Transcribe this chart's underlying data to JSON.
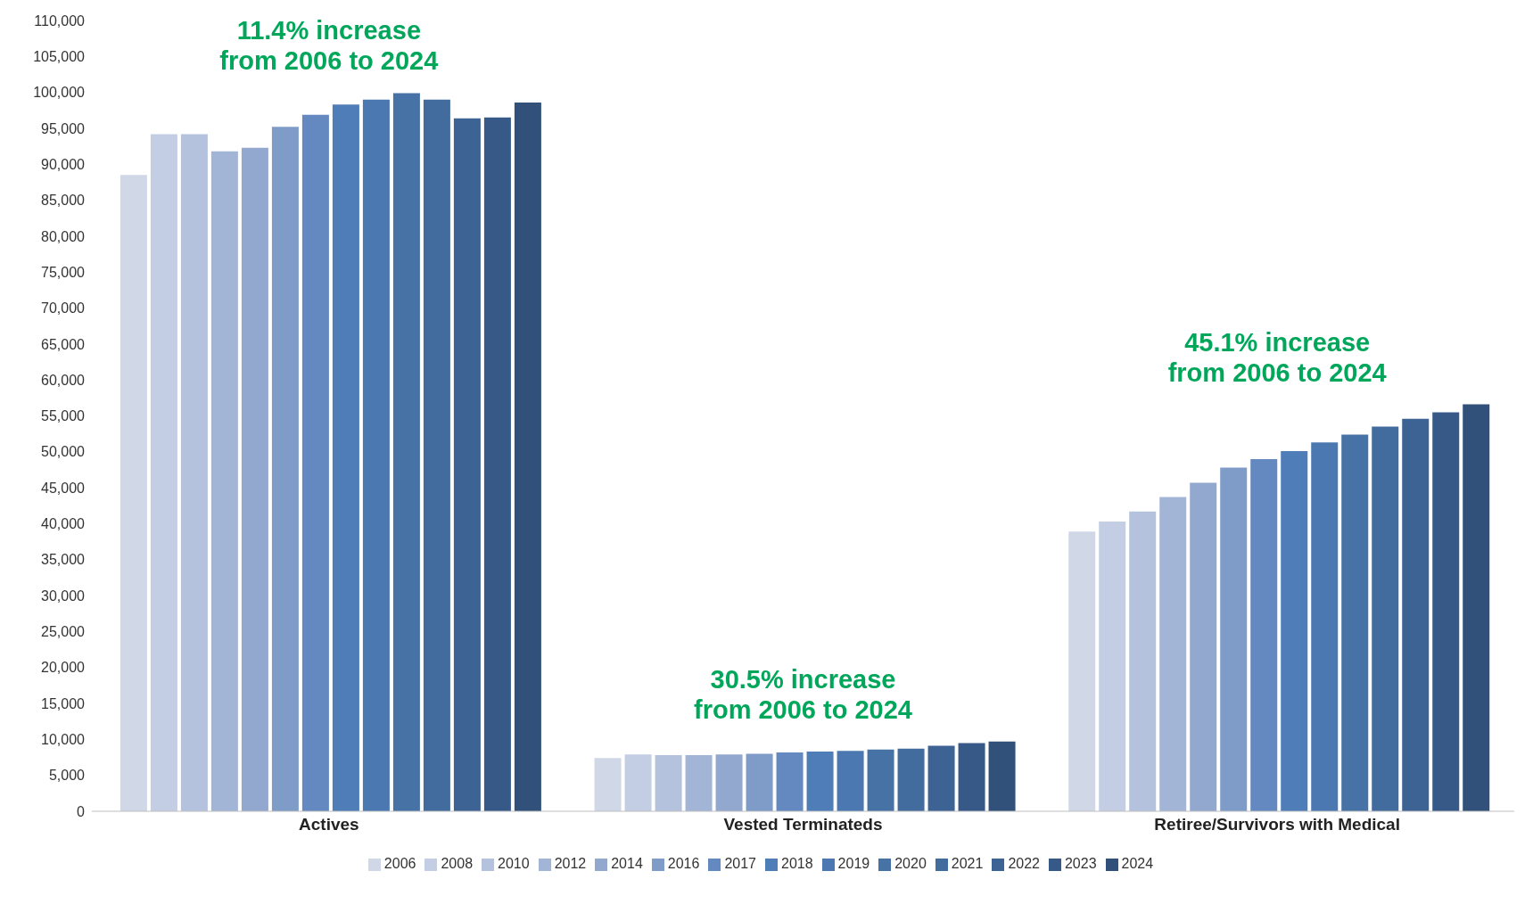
{
  "chart_data": {
    "type": "bar",
    "categories": [
      "Actives",
      "Vested Terminateds",
      "Retiree/Survivors with Medical"
    ],
    "series": [
      {
        "name": "2006",
        "color": "#d0d8e8",
        "values": [
          88500,
          7400,
          38900
        ]
      },
      {
        "name": "2008",
        "color": "#c3cde3",
        "values": [
          94200,
          7900,
          40300
        ]
      },
      {
        "name": "2010",
        "color": "#b4c2dd",
        "values": [
          94200,
          7800,
          41700
        ]
      },
      {
        "name": "2012",
        "color": "#a3b5d6",
        "values": [
          91800,
          7800,
          43700
        ]
      },
      {
        "name": "2014",
        "color": "#93a8cf",
        "values": [
          92300,
          7900,
          45700
        ]
      },
      {
        "name": "2016",
        "color": "#7f9bc8",
        "values": [
          95200,
          8000,
          47800
        ]
      },
      {
        "name": "2017",
        "color": "#6389c0",
        "values": [
          96900,
          8200,
          49000
        ]
      },
      {
        "name": "2018",
        "color": "#4f7db8",
        "values": [
          98300,
          8300,
          50100
        ]
      },
      {
        "name": "2019",
        "color": "#4b78b1",
        "values": [
          99000,
          8400,
          51300
        ]
      },
      {
        "name": "2020",
        "color": "#4672a6",
        "values": [
          99900,
          8600,
          52400
        ]
      },
      {
        "name": "2021",
        "color": "#426b9e",
        "values": [
          99000,
          8700,
          53500
        ]
      },
      {
        "name": "2022",
        "color": "#3d6394",
        "values": [
          96400,
          9100,
          54600
        ]
      },
      {
        "name": "2023",
        "color": "#375987",
        "values": [
          96500,
          9500,
          55500
        ]
      },
      {
        "name": "2024",
        "color": "#31517a",
        "values": [
          98600,
          9700,
          56600
        ]
      }
    ],
    "ylim": [
      0,
      110000
    ],
    "yticks": [
      0,
      {
        "value": 5000,
        "label": "5,000"
      },
      {
        "value": 10000,
        "label": "10,000"
      },
      {
        "value": 15000,
        "label": "15,000"
      },
      {
        "value": 20000,
        "label": "20,000"
      },
      {
        "value": 25000,
        "label": "25,000"
      },
      {
        "value": 30000,
        "label": "30,000"
      },
      {
        "value": 35000,
        "label": "35,000"
      },
      {
        "value": 40000,
        "label": "40,000"
      },
      {
        "value": 45000,
        "label": "45,000"
      },
      {
        "value": 50000,
        "label": "50,000"
      },
      {
        "value": 55000,
        "label": "55,000"
      },
      {
        "value": 60000,
        "label": "60,000"
      },
      {
        "value": 65000,
        "label": "65,000"
      },
      {
        "value": 70000,
        "label": "70,000"
      },
      {
        "value": 75000,
        "label": "75,000"
      },
      {
        "value": 80000,
        "label": "80,000"
      },
      {
        "value": 85000,
        "label": "85,000"
      },
      {
        "value": 90000,
        "label": "90,000"
      },
      {
        "value": 95000,
        "label": "95,000"
      },
      {
        "value": 100000,
        "label": "100,000"
      },
      {
        "value": 105000,
        "label": "105,000"
      },
      {
        "value": 110000,
        "label": "110,000"
      }
    ],
    "grid": false,
    "legend": "bottom",
    "annotations": [
      "11.4% increase\nfrom 2006 to 2024",
      "30.5% increase\nfrom 2006 to 2024",
      "45.1% increase\nfrom 2006 to 2024"
    ]
  }
}
